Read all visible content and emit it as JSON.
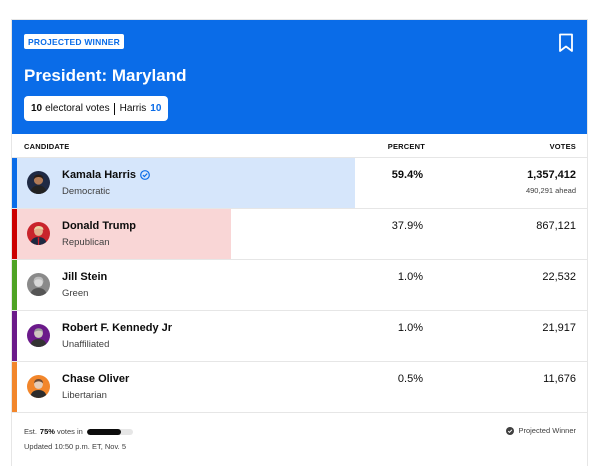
{
  "header": {
    "badge": "PROJECTED WINNER",
    "title": "President: Maryland",
    "ev_count": "10",
    "ev_label": "electoral votes",
    "leader_name": "Harris",
    "leader_ev": "10",
    "bookmark_icon": "bookmark-icon"
  },
  "columns": {
    "candidate": "CANDIDATE",
    "percent": "PERCENT",
    "votes": "VOTES"
  },
  "candidates": [
    {
      "name": "Kamala Harris",
      "party": "Democratic",
      "percent": "59.4%",
      "votes": "1,357,412",
      "ahead": "490,291 ahead",
      "winner": true,
      "share": 0.594,
      "strip_color": "#0a6ce8",
      "bar_color": "#d6e6fb",
      "avatar_bg": "#1f2a44"
    },
    {
      "name": "Donald Trump",
      "party": "Republican",
      "percent": "37.9%",
      "votes": "867,121",
      "ahead": "",
      "winner": false,
      "share": 0.379,
      "strip_color": "#cc0000",
      "bar_color": "#f9d6d6",
      "avatar_bg": "#c9252c"
    },
    {
      "name": "Jill Stein",
      "party": "Green",
      "percent": "1.0%",
      "votes": "22,532",
      "ahead": "",
      "winner": false,
      "share": 0,
      "strip_color": "#4ea324",
      "bar_color": "#ffffff",
      "avatar_bg": "#8a8a8a"
    },
    {
      "name": "Robert F. Kennedy Jr",
      "party": "Unaffiliated",
      "percent": "1.0%",
      "votes": "21,917",
      "ahead": "",
      "winner": false,
      "share": 0,
      "strip_color": "#6b1a8a",
      "bar_color": "#ffffff",
      "avatar_bg": "#6b1a8a"
    },
    {
      "name": "Chase Oliver",
      "party": "Libertarian",
      "percent": "0.5%",
      "votes": "11,676",
      "ahead": "",
      "winner": false,
      "share": 0,
      "strip_color": "#f2862b",
      "bar_color": "#ffffff",
      "avatar_bg": "#f2862b"
    }
  ],
  "footer": {
    "est_prefix": "Est.",
    "est_pct": "75%",
    "est_suffix": "votes in",
    "reporting_fraction": 0.75,
    "updated": "Updated 10:50 p.m. ET, Nov. 5",
    "legend": "Projected Winner"
  },
  "colors": {
    "accent": "#0a6ce8"
  }
}
